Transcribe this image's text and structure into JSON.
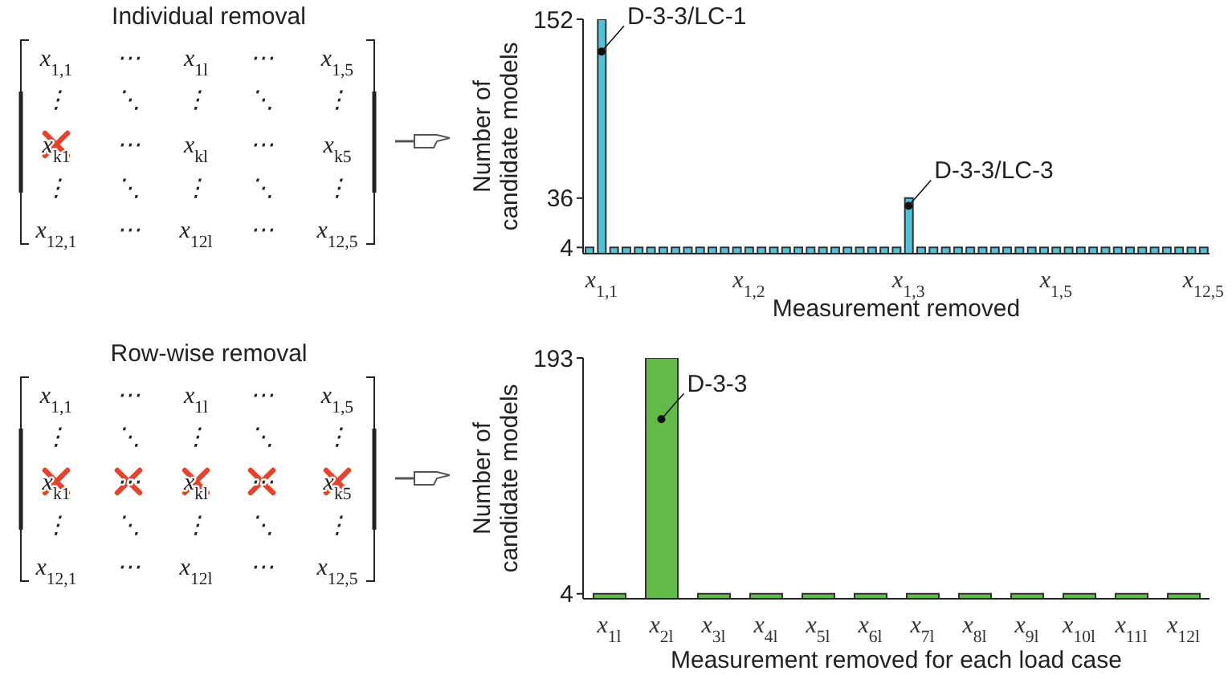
{
  "chart_data": [
    {
      "type": "other",
      "title": "Individual removal",
      "annotations": [
        "x$_{1,1}$",
        "⋯",
        "x$_{1l}$",
        "⋯",
        "x$_{1,5}$",
        "⋮",
        "⋱",
        "⋮",
        "⋱",
        "⋮",
        "x$_{k1}$",
        "⋯",
        "x$_{kl}$",
        "⋯",
        "x$_{k5}$",
        "⋮",
        "⋱",
        "⋮",
        "⋱",
        "⋮",
        "x$_{12,1}$",
        "⋯",
        "x$_{12l}$",
        "⋯",
        "x$_{12,5}$"
      ]
    },
    {
      "type": "bar",
      "xlabel": "Measurement removed",
      "ylabel": "Number of candidate models",
      "color": "#4fc3d8",
      "categories": [
        null,
        "x$_{1,1}$",
        null,
        null,
        null,
        null,
        null,
        null,
        null,
        null,
        null,
        null,
        null,
        "x$_{1,2}$",
        null,
        null,
        null,
        null,
        null,
        null,
        null,
        null,
        null,
        null,
        null,
        null,
        "x$_{1,3}$",
        null,
        null,
        null,
        null,
        null,
        null,
        null,
        null,
        null,
        null,
        null,
        "x$_{1,5}$",
        null,
        null,
        null,
        null,
        null,
        null,
        null,
        null,
        null,
        null,
        null,
        "x$_{12,5}$"
      ],
      "values": [
        4,
        152,
        4,
        4,
        4,
        4,
        4,
        4,
        4,
        4,
        4,
        4,
        4,
        4,
        4,
        4,
        4,
        4,
        4,
        4,
        4,
        4,
        4,
        4,
        4,
        4,
        36,
        4,
        4,
        4,
        4,
        4,
        4,
        4,
        4,
        4,
        4,
        4,
        4,
        4,
        4,
        4,
        4,
        4,
        4,
        4,
        4,
        4,
        4,
        4,
        4
      ],
      "ylim": [
        0,
        152
      ],
      "yticks": [
        4,
        36,
        152
      ],
      "annotations": [
        {
          "text": "D-3-3/LC-1",
          "x": "x$_{1,1}$",
          "y": 131
        },
        {
          "text": "D-3-3/LC-3",
          "x": "x$_{1,3}$",
          "y": 31
        }
      ]
    },
    {
      "type": "other",
      "title": "Row-wise removal",
      "annotations": [
        "x$_{1,1}$",
        "⋯",
        "x$_{1l}$",
        "⋯",
        "x$_{1,5}$",
        "⋮",
        "⋱",
        "⋮",
        "⋱",
        "⋮",
        "x$_{k1}$",
        "⋯",
        "x$_{kl}$",
        "⋯",
        "x$_{k5}$",
        "⋮",
        "⋱",
        "⋮",
        "⋱",
        "⋮",
        "x$_{12,1}$",
        "⋯",
        "x$_{12l}$",
        "⋯",
        "x$_{12,5}$"
      ]
    },
    {
      "type": "bar",
      "xlabel": "Measurement removed for each load case",
      "ylabel": "Number of candidate models",
      "color": "#62bb46",
      "categories": [
        "x$_{1l}$",
        "x$_{2l}$",
        "x$_{3l}$",
        "x$_{4l}$",
        "x$_{5l}$",
        "x$_{6l}$",
        "x$_{7l}$",
        "x$_{8l}$",
        "x$_{9l}$",
        "x$_{10l}$",
        "x$_{11l}$",
        "x$_{12l}$"
      ],
      "values": [
        4,
        193,
        4,
        4,
        4,
        4,
        4,
        4,
        4,
        4,
        4,
        4
      ],
      "ylim": [
        0,
        193
      ],
      "yticks": [
        4,
        193
      ],
      "annotations": [
        {
          "text": "D-3-3",
          "x": "x$_{2l}$",
          "y": 144
        }
      ]
    }
  ]
}
